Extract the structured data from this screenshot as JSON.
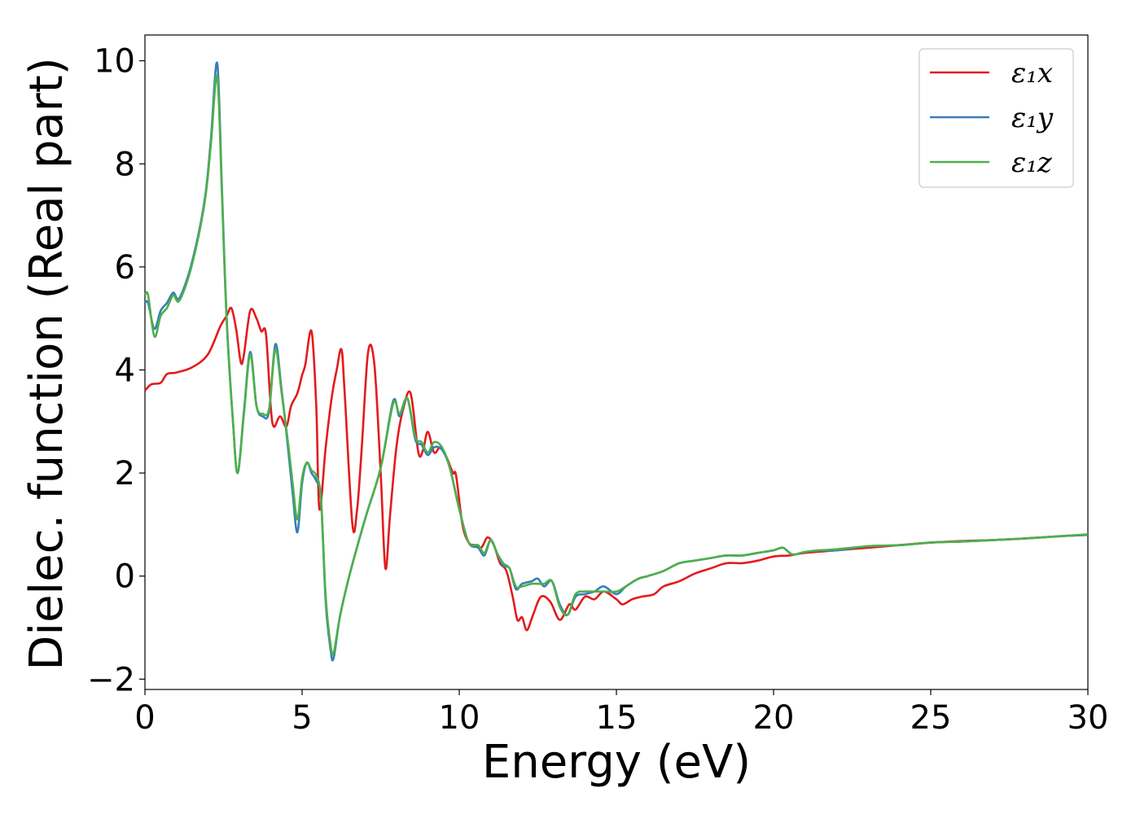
{
  "chart_data": {
    "type": "line",
    "xlabel": "Energy (eV)",
    "ylabel": "Dielec. function (Real part)",
    "xlim": [
      0,
      30
    ],
    "ylim": [
      -2.2,
      10.5
    ],
    "xticks": [
      0,
      5,
      10,
      15,
      20,
      25,
      30
    ],
    "yticks": [
      -2,
      0,
      2,
      4,
      6,
      8,
      10
    ],
    "xtick_labels": [
      "0",
      "5",
      "10",
      "15",
      "20",
      "25",
      "30"
    ],
    "ytick_labels": [
      "−2",
      "0",
      "2",
      "4",
      "6",
      "8",
      "10"
    ],
    "grid": false,
    "legend_position": "top-right",
    "series": [
      {
        "name": "ε₁x",
        "color": "#e41a1c",
        "points": [
          [
            0,
            3.6
          ],
          [
            0.2,
            3.72
          ],
          [
            0.5,
            3.75
          ],
          [
            0.7,
            3.92
          ],
          [
            1.0,
            3.95
          ],
          [
            1.5,
            4.05
          ],
          [
            2.0,
            4.3
          ],
          [
            2.4,
            4.85
          ],
          [
            2.6,
            5.05
          ],
          [
            2.75,
            5.2
          ],
          [
            2.9,
            4.8
          ],
          [
            3.05,
            4.15
          ],
          [
            3.15,
            4.3
          ],
          [
            3.35,
            5.15
          ],
          [
            3.55,
            5.0
          ],
          [
            3.7,
            4.75
          ],
          [
            3.85,
            4.7
          ],
          [
            4.0,
            3.3
          ],
          [
            4.1,
            2.9
          ],
          [
            4.3,
            3.1
          ],
          [
            4.5,
            2.9
          ],
          [
            4.65,
            3.3
          ],
          [
            4.85,
            3.55
          ],
          [
            5.0,
            3.9
          ],
          [
            5.1,
            4.1
          ],
          [
            5.3,
            4.75
          ],
          [
            5.45,
            3.3
          ],
          [
            5.55,
            1.3
          ],
          [
            5.75,
            2.5
          ],
          [
            5.95,
            3.5
          ],
          [
            6.1,
            4.0
          ],
          [
            6.25,
            4.4
          ],
          [
            6.35,
            3.6
          ],
          [
            6.6,
            1.0
          ],
          [
            6.75,
            1.3
          ],
          [
            6.9,
            2.5
          ],
          [
            7.1,
            4.35
          ],
          [
            7.3,
            4.1
          ],
          [
            7.5,
            2.0
          ],
          [
            7.65,
            0.15
          ],
          [
            7.8,
            1.2
          ],
          [
            8.0,
            2.5
          ],
          [
            8.2,
            3.2
          ],
          [
            8.45,
            3.55
          ],
          [
            8.7,
            2.4
          ],
          [
            8.85,
            2.45
          ],
          [
            9.0,
            2.8
          ],
          [
            9.2,
            2.4
          ],
          [
            9.4,
            2.5
          ],
          [
            9.6,
            2.3
          ],
          [
            9.8,
            2.0
          ],
          [
            9.9,
            1.95
          ],
          [
            10.1,
            1.0
          ],
          [
            10.3,
            0.65
          ],
          [
            10.5,
            0.6
          ],
          [
            10.7,
            0.55
          ],
          [
            10.9,
            0.75
          ],
          [
            11.1,
            0.6
          ],
          [
            11.3,
            0.25
          ],
          [
            11.5,
            0.1
          ],
          [
            11.7,
            -0.4
          ],
          [
            11.85,
            -0.85
          ],
          [
            12.0,
            -0.8
          ],
          [
            12.15,
            -1.05
          ],
          [
            12.35,
            -0.75
          ],
          [
            12.6,
            -0.4
          ],
          [
            12.9,
            -0.5
          ],
          [
            13.2,
            -0.85
          ],
          [
            13.5,
            -0.55
          ],
          [
            13.7,
            -0.65
          ],
          [
            14.0,
            -0.4
          ],
          [
            14.3,
            -0.45
          ],
          [
            14.6,
            -0.3
          ],
          [
            15.0,
            -0.45
          ],
          [
            15.2,
            -0.55
          ],
          [
            15.5,
            -0.45
          ],
          [
            15.8,
            -0.4
          ],
          [
            16.2,
            -0.35
          ],
          [
            16.5,
            -0.2
          ],
          [
            17.0,
            -0.1
          ],
          [
            17.5,
            0.05
          ],
          [
            18.0,
            0.15
          ],
          [
            18.5,
            0.25
          ],
          [
            19.0,
            0.25
          ],
          [
            19.5,
            0.3
          ],
          [
            20.0,
            0.38
          ],
          [
            20.5,
            0.4
          ],
          [
            21.0,
            0.45
          ],
          [
            22.0,
            0.5
          ],
          [
            23.0,
            0.55
          ],
          [
            24.0,
            0.6
          ],
          [
            25.0,
            0.65
          ],
          [
            26.0,
            0.68
          ],
          [
            27.0,
            0.7
          ],
          [
            28.0,
            0.73
          ],
          [
            29.0,
            0.77
          ],
          [
            30.0,
            0.8
          ]
        ]
      },
      {
        "name": "ε₁y",
        "color": "#377eb8",
        "points": [
          [
            0,
            5.3
          ],
          [
            0.1,
            5.3
          ],
          [
            0.3,
            4.8
          ],
          [
            0.5,
            5.15
          ],
          [
            0.7,
            5.3
          ],
          [
            0.9,
            5.5
          ],
          [
            1.1,
            5.4
          ],
          [
            1.5,
            6.1
          ],
          [
            1.9,
            7.3
          ],
          [
            2.1,
            8.5
          ],
          [
            2.3,
            9.95
          ],
          [
            2.45,
            7.5
          ],
          [
            2.6,
            5.0
          ],
          [
            2.8,
            3.0
          ],
          [
            2.95,
            2.0
          ],
          [
            3.15,
            3.2
          ],
          [
            3.35,
            4.35
          ],
          [
            3.55,
            3.3
          ],
          [
            3.75,
            3.1
          ],
          [
            3.95,
            3.2
          ],
          [
            4.15,
            4.5
          ],
          [
            4.35,
            3.6
          ],
          [
            4.55,
            2.5
          ],
          [
            4.7,
            1.6
          ],
          [
            4.85,
            0.85
          ],
          [
            5.0,
            1.8
          ],
          [
            5.15,
            2.2
          ],
          [
            5.3,
            2.0
          ],
          [
            5.45,
            1.85
          ],
          [
            5.6,
            1.5
          ],
          [
            5.75,
            -0.5
          ],
          [
            5.9,
            -1.4
          ],
          [
            6.0,
            -1.6
          ],
          [
            6.2,
            -0.8
          ],
          [
            6.5,
            0.0
          ],
          [
            7.0,
            1.1
          ],
          [
            7.5,
            2.1
          ],
          [
            7.9,
            3.4
          ],
          [
            8.1,
            3.1
          ],
          [
            8.35,
            3.45
          ],
          [
            8.6,
            2.65
          ],
          [
            8.8,
            2.55
          ],
          [
            9.0,
            2.35
          ],
          [
            9.2,
            2.5
          ],
          [
            9.45,
            2.45
          ],
          [
            9.7,
            2.1
          ],
          [
            10.0,
            1.3
          ],
          [
            10.3,
            0.65
          ],
          [
            10.6,
            0.55
          ],
          [
            10.8,
            0.4
          ],
          [
            11.0,
            0.7
          ],
          [
            11.2,
            0.45
          ],
          [
            11.4,
            0.2
          ],
          [
            11.6,
            0.15
          ],
          [
            11.8,
            -0.25
          ],
          [
            12.0,
            -0.15
          ],
          [
            12.3,
            -0.1
          ],
          [
            12.5,
            -0.05
          ],
          [
            12.7,
            -0.2
          ],
          [
            12.95,
            -0.1
          ],
          [
            13.2,
            -0.55
          ],
          [
            13.45,
            -0.75
          ],
          [
            13.7,
            -0.4
          ],
          [
            14.0,
            -0.35
          ],
          [
            14.3,
            -0.3
          ],
          [
            14.6,
            -0.2
          ],
          [
            15.0,
            -0.35
          ],
          [
            15.3,
            -0.2
          ],
          [
            15.7,
            -0.05
          ],
          [
            16.0,
            0.0
          ],
          [
            16.5,
            0.1
          ],
          [
            17.0,
            0.25
          ],
          [
            17.5,
            0.3
          ],
          [
            18.0,
            0.35
          ],
          [
            18.5,
            0.4
          ],
          [
            19.0,
            0.4
          ],
          [
            19.5,
            0.45
          ],
          [
            20.0,
            0.5
          ],
          [
            20.3,
            0.55
          ],
          [
            20.6,
            0.42
          ],
          [
            21.0,
            0.47
          ],
          [
            21.5,
            0.5
          ],
          [
            22.0,
            0.5
          ],
          [
            23.0,
            0.58
          ],
          [
            24.0,
            0.6
          ],
          [
            25.0,
            0.65
          ],
          [
            26.0,
            0.67
          ],
          [
            27.0,
            0.7
          ],
          [
            28.0,
            0.73
          ],
          [
            29.0,
            0.77
          ],
          [
            30.0,
            0.8
          ]
        ]
      },
      {
        "name": "ε₁z",
        "color": "#4daf4a",
        "points": [
          [
            0,
            5.45
          ],
          [
            0.1,
            5.45
          ],
          [
            0.3,
            4.65
          ],
          [
            0.5,
            5.05
          ],
          [
            0.7,
            5.2
          ],
          [
            0.9,
            5.45
          ],
          [
            1.1,
            5.35
          ],
          [
            1.5,
            6.05
          ],
          [
            1.9,
            7.25
          ],
          [
            2.1,
            8.4
          ],
          [
            2.3,
            9.7
          ],
          [
            2.45,
            7.4
          ],
          [
            2.6,
            4.95
          ],
          [
            2.8,
            3.0
          ],
          [
            2.95,
            2.0
          ],
          [
            3.15,
            3.15
          ],
          [
            3.35,
            4.3
          ],
          [
            3.55,
            3.3
          ],
          [
            3.75,
            3.15
          ],
          [
            3.95,
            3.25
          ],
          [
            4.15,
            4.4
          ],
          [
            4.35,
            3.55
          ],
          [
            4.55,
            2.6
          ],
          [
            4.7,
            1.8
          ],
          [
            4.85,
            1.1
          ],
          [
            5.0,
            1.9
          ],
          [
            5.15,
            2.2
          ],
          [
            5.3,
            2.05
          ],
          [
            5.45,
            1.95
          ],
          [
            5.6,
            1.5
          ],
          [
            5.75,
            -0.4
          ],
          [
            5.9,
            -1.3
          ],
          [
            6.0,
            -1.5
          ],
          [
            6.2,
            -0.8
          ],
          [
            6.5,
            0.0
          ],
          [
            7.0,
            1.1
          ],
          [
            7.5,
            2.1
          ],
          [
            7.9,
            3.35
          ],
          [
            8.1,
            3.15
          ],
          [
            8.35,
            3.45
          ],
          [
            8.6,
            2.7
          ],
          [
            8.8,
            2.6
          ],
          [
            9.0,
            2.4
          ],
          [
            9.2,
            2.6
          ],
          [
            9.45,
            2.5
          ],
          [
            9.7,
            2.1
          ],
          [
            10.0,
            1.3
          ],
          [
            10.3,
            0.65
          ],
          [
            10.6,
            0.6
          ],
          [
            10.8,
            0.45
          ],
          [
            11.0,
            0.7
          ],
          [
            11.2,
            0.45
          ],
          [
            11.4,
            0.25
          ],
          [
            11.6,
            0.15
          ],
          [
            11.8,
            -0.2
          ],
          [
            12.0,
            -0.2
          ],
          [
            12.3,
            -0.15
          ],
          [
            12.5,
            -0.15
          ],
          [
            12.7,
            -0.15
          ],
          [
            12.95,
            -0.1
          ],
          [
            13.2,
            -0.6
          ],
          [
            13.45,
            -0.75
          ],
          [
            13.7,
            -0.35
          ],
          [
            14.0,
            -0.3
          ],
          [
            14.3,
            -0.3
          ],
          [
            14.6,
            -0.3
          ],
          [
            15.0,
            -0.3
          ],
          [
            15.3,
            -0.2
          ],
          [
            15.7,
            -0.05
          ],
          [
            16.0,
            0.0
          ],
          [
            16.5,
            0.1
          ],
          [
            17.0,
            0.25
          ],
          [
            17.5,
            0.3
          ],
          [
            18.0,
            0.35
          ],
          [
            18.5,
            0.4
          ],
          [
            19.0,
            0.4
          ],
          [
            19.5,
            0.45
          ],
          [
            20.0,
            0.5
          ],
          [
            20.3,
            0.55
          ],
          [
            20.6,
            0.42
          ],
          [
            21.0,
            0.47
          ],
          [
            21.5,
            0.5
          ],
          [
            22.0,
            0.52
          ],
          [
            23.0,
            0.58
          ],
          [
            24.0,
            0.6
          ],
          [
            25.0,
            0.65
          ],
          [
            26.0,
            0.67
          ],
          [
            27.0,
            0.7
          ],
          [
            28.0,
            0.73
          ],
          [
            29.0,
            0.77
          ],
          [
            30.0,
            0.81
          ]
        ]
      }
    ]
  }
}
